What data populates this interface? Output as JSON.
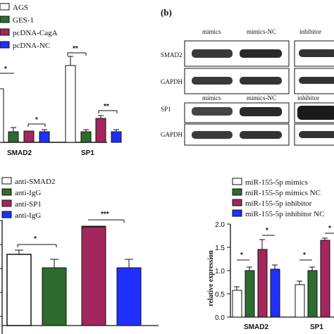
{
  "colors": {
    "white": "#ffffff",
    "green": "#2e6b2e",
    "maroon": "#a3265d",
    "blue": "#1f2fff"
  },
  "panel_b": {
    "label": "(b)",
    "blot1_cols": [
      "mimics",
      "mimics-NC",
      "inhibitor"
    ],
    "blot2_cols": [
      "mimics",
      "mimics-NC",
      "inhibitor"
    ],
    "rows": [
      "SMAD2",
      "GAPDH",
      "SP1",
      "GAPDH"
    ]
  },
  "chart_data": [
    {
      "type": "bar",
      "legend": [
        "AGS",
        "GES-1",
        "pcDNA-CagA",
        "pcDNA-NC"
      ],
      "categories": [
        "SMAD2",
        "SP1"
      ],
      "series": [
        {
          "name": "AGS",
          "values": [
            3.0,
            2.7
          ]
        },
        {
          "name": "GES-1",
          "values": [
            0.55,
            0.55
          ]
        },
        {
          "name": "pcDNA-CagA",
          "values": [
            0.6,
            1.25
          ]
        },
        {
          "name": "pcDNA-NC",
          "values": [
            0.55,
            0.6
          ]
        }
      ],
      "significance": [
        "*",
        "*",
        "**",
        "**"
      ]
    },
    {
      "type": "bar",
      "legend": [
        "anti-SMAD2",
        "anti-IgG",
        "anti-SP1",
        "anti-IgG"
      ],
      "values": [
        1.3,
        1.0,
        1.88,
        1.0
      ],
      "errors": [
        0.06,
        0.18,
        0.02,
        0.17
      ],
      "significance": [
        "*",
        "***"
      ]
    },
    {
      "type": "bar",
      "legend": [
        "miR-155-5p mimics",
        "miR-155-5p mimics NC",
        "miR-155-5p inhibitor",
        "miR-155-5p inhibitor NC"
      ],
      "ylabel": "relative expression",
      "yticks": [
        "0.0",
        "0.5",
        "1.0",
        "1.5",
        "2.0"
      ],
      "ylim": [
        0,
        2.0
      ],
      "categories": [
        "SMAD2",
        "SP1"
      ],
      "series": [
        {
          "name": "miR-155-5p mimics",
          "values": [
            0.58,
            0.7
          ]
        },
        {
          "name": "miR-155-5p mimics NC",
          "values": [
            1.0,
            1.0
          ]
        },
        {
          "name": "miR-155-5p inhibitor",
          "values": [
            1.45,
            1.65
          ]
        },
        {
          "name": "miR-155-5p inhibitor NC",
          "values": [
            1.03,
            1.0
          ]
        }
      ],
      "errors": [
        [
          0.07,
          0.07
        ],
        [
          0.08,
          0.07
        ],
        [
          0.2,
          0.05
        ],
        [
          0.08,
          0.05
        ]
      ],
      "significance": [
        "*",
        "*",
        "*",
        "*"
      ]
    }
  ]
}
